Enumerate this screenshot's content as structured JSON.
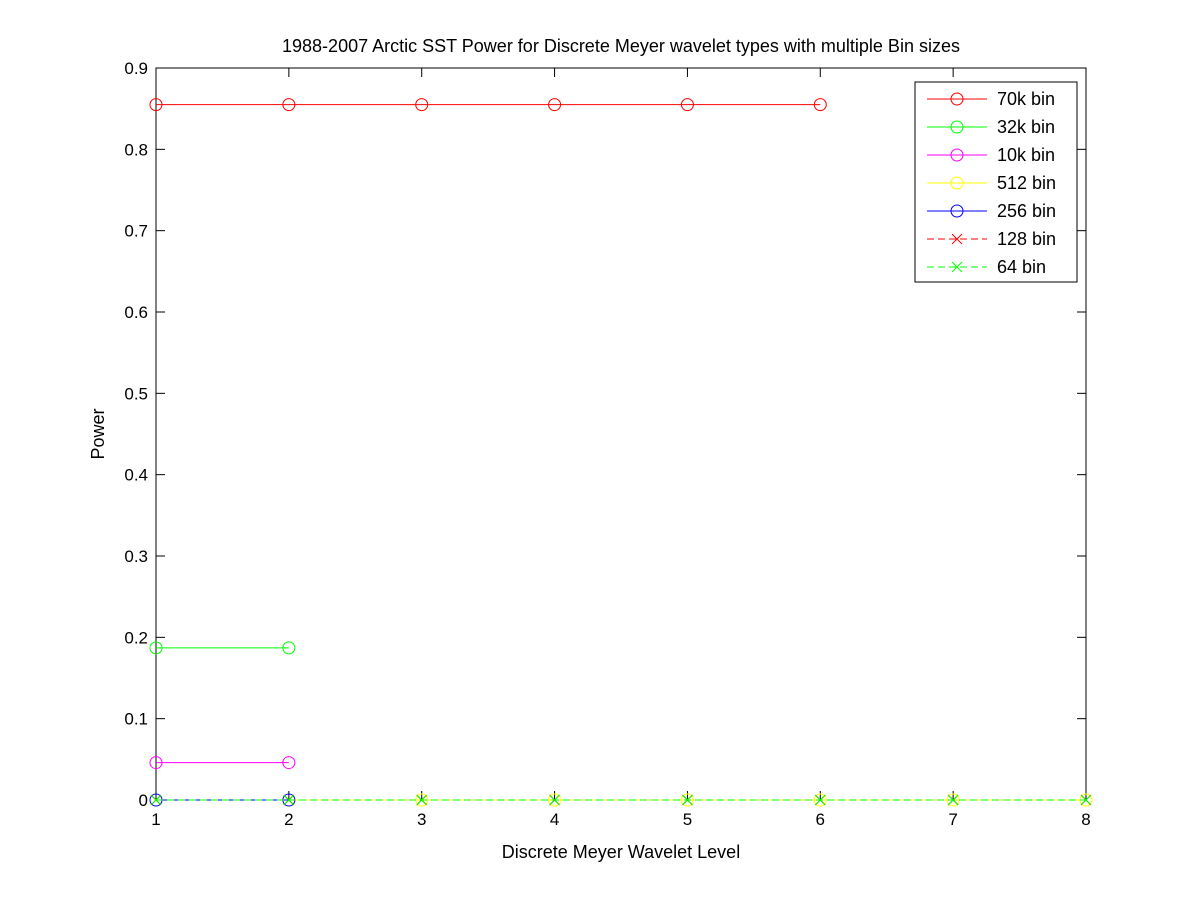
{
  "chart_data": {
    "type": "line",
    "title": "1988-2007 Arctic SST Power for Discrete Meyer wavelet types with multiple Bin sizes",
    "xlabel": "Discrete Meyer Wavelet Level",
    "ylabel": "Power",
    "xlim": [
      1,
      8
    ],
    "ylim": [
      0,
      0.9
    ],
    "xticks": [
      1,
      2,
      3,
      4,
      5,
      6,
      7,
      8
    ],
    "yticks": [
      0,
      0.1,
      0.2,
      0.3,
      0.4,
      0.5,
      0.6,
      0.7,
      0.8,
      0.9
    ],
    "ytick_labels": [
      "0",
      "0.1",
      "0.2",
      "0.3",
      "0.4",
      "0.5",
      "0.6",
      "0.7",
      "0.8",
      "0.9"
    ],
    "grid": false,
    "legend_position": "top-right",
    "series": [
      {
        "name": "70k bin",
        "color": "#ff0000",
        "marker": "circle",
        "dash": "solid",
        "x": [
          1,
          2,
          3,
          4,
          5,
          6
        ],
        "values": [
          0.855,
          0.855,
          0.855,
          0.855,
          0.855,
          0.855
        ]
      },
      {
        "name": "32k bin",
        "color": "#00ff00",
        "marker": "circle",
        "dash": "solid",
        "x": [
          1,
          2
        ],
        "values": [
          0.187,
          0.187
        ]
      },
      {
        "name": "10k bin",
        "color": "#ff00ff",
        "marker": "circle",
        "dash": "solid",
        "x": [
          1,
          2
        ],
        "values": [
          0.046,
          0.046
        ]
      },
      {
        "name": "512 bin",
        "color": "#ffff00",
        "marker": "circle",
        "dash": "solid",
        "x": [
          1,
          2,
          3,
          4,
          5,
          6,
          7,
          8
        ],
        "values": [
          0,
          0,
          0,
          0,
          0,
          0,
          0,
          0
        ]
      },
      {
        "name": "256 bin",
        "color": "#0000ff",
        "marker": "circle",
        "dash": "solid",
        "x": [
          1,
          2
        ],
        "values": [
          0,
          0
        ]
      },
      {
        "name": "128 bin",
        "color": "#ff0000",
        "marker": "x",
        "dash": "dashed",
        "x": [
          1,
          2,
          3,
          4,
          5,
          6,
          7,
          8
        ],
        "values": [
          0,
          0,
          0,
          0,
          0,
          0,
          0,
          0
        ]
      },
      {
        "name": "64 bin",
        "color": "#00ff00",
        "marker": "x",
        "dash": "dashed",
        "x": [
          1,
          2,
          3,
          4,
          5,
          6,
          7,
          8
        ],
        "values": [
          0,
          0,
          0,
          0,
          0,
          0,
          0,
          0
        ]
      }
    ]
  }
}
